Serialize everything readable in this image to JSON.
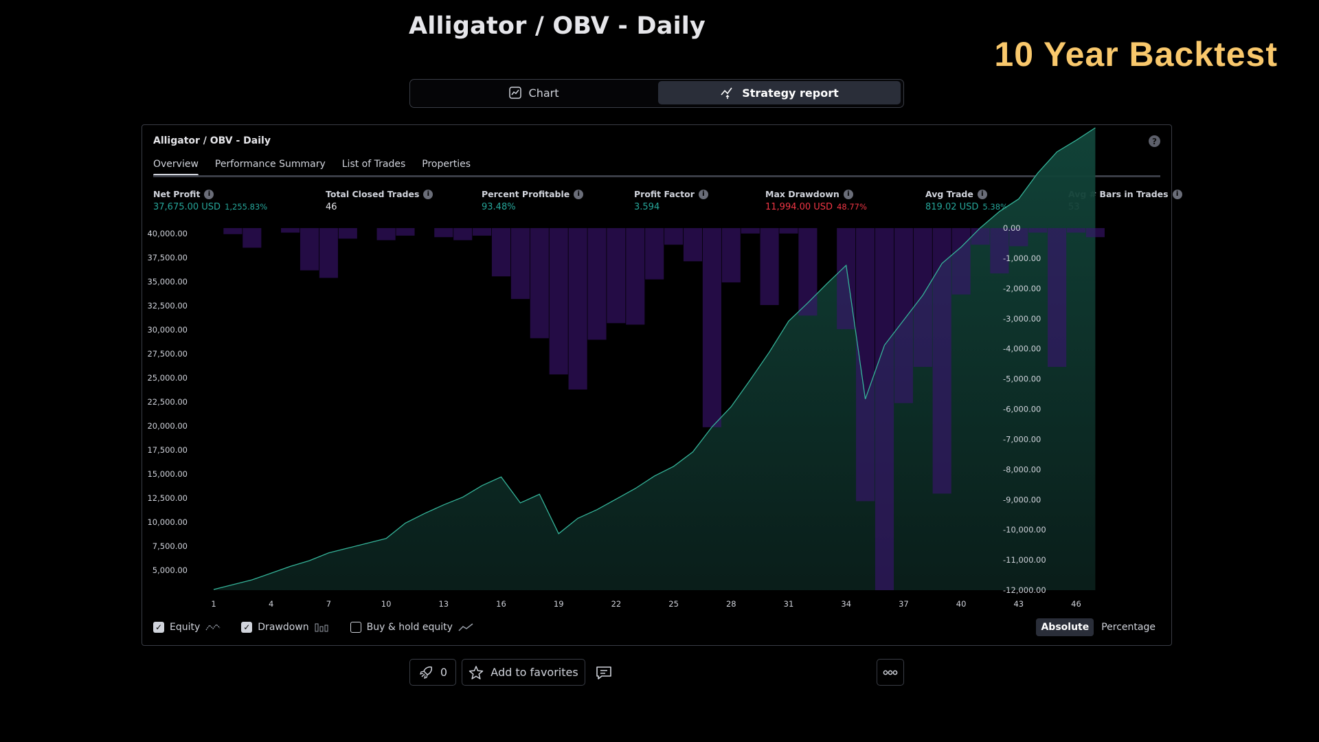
{
  "page_title": "Alligator / OBV - Daily",
  "banner": "10 Year Backtest",
  "view_switch": {
    "chart": "Chart",
    "strategy_report": "Strategy report",
    "active": "strategy_report"
  },
  "panel": {
    "title": "Alligator / OBV - Daily",
    "tabs": [
      "Overview",
      "Performance Summary",
      "List of Trades",
      "Properties"
    ],
    "active_tab": "Overview",
    "metrics": [
      {
        "label": "Net Profit",
        "value": "37,675.00 USD",
        "sub": "1,255.83%",
        "color": "#26a69a"
      },
      {
        "label": "Total Closed Trades",
        "value": "46",
        "sub": "",
        "color": "#e6e6ea"
      },
      {
        "label": "Percent Profitable",
        "value": "93.48%",
        "sub": "",
        "color": "#26a69a"
      },
      {
        "label": "Profit Factor",
        "value": "3.594",
        "sub": "",
        "color": "#26a69a"
      },
      {
        "label": "Max Drawdown",
        "value": "11,994.00 USD",
        "sub": "48.77%",
        "color": "#f23645"
      },
      {
        "label": "Avg Trade",
        "value": "819.02 USD",
        "sub": "5.38%",
        "color": "#26a69a"
      },
      {
        "label": "Avg # Bars in Trades",
        "value": "53",
        "sub": "",
        "color": "#e6e6ea"
      }
    ],
    "legend": [
      {
        "label": "Equity",
        "checked": true,
        "icon": "equity-icon"
      },
      {
        "label": "Drawdown",
        "checked": true,
        "icon": "drawdown-bars-icon"
      },
      {
        "label": "Buy & hold equity",
        "checked": false,
        "icon": "buy-hold-line-icon"
      }
    ],
    "mode": {
      "absolute": "Absolute",
      "percentage": "Percentage",
      "active": "absolute"
    }
  },
  "chart_data": {
    "type": "area",
    "x": [
      1,
      2,
      3,
      4,
      5,
      6,
      7,
      8,
      9,
      10,
      11,
      12,
      13,
      14,
      15,
      16,
      17,
      18,
      19,
      20,
      21,
      22,
      23,
      24,
      25,
      26,
      27,
      28,
      29,
      30,
      31,
      32,
      33,
      34,
      35,
      36,
      37,
      38,
      39,
      40,
      41,
      42,
      43,
      44,
      45,
      46,
      47
    ],
    "x_ticks": [
      1,
      4,
      7,
      10,
      13,
      16,
      19,
      22,
      25,
      28,
      31,
      34,
      37,
      40,
      43,
      46
    ],
    "series": [
      {
        "axis": "left",
        "type": "area",
        "values": [
          3000,
          3500,
          4000,
          4700,
          5400,
          6000,
          6800,
          7300,
          7800,
          8300,
          9900,
          10900,
          11800,
          12600,
          13800,
          14700,
          12000,
          12900,
          8800,
          10400,
          11300,
          12400,
          13500,
          14800,
          15800,
          17300,
          19900,
          22000,
          24800,
          27700,
          30900,
          32800,
          34800,
          36700,
          22800,
          28400,
          31000,
          33600,
          36900,
          38600,
          40600,
          42300,
          43600,
          46300,
          48500,
          49700,
          51000
        ]
      },
      {
        "axis": "right",
        "type": "bar",
        "values": [
          0,
          -200,
          -650,
          0,
          -150,
          -1400,
          -1650,
          -350,
          0,
          -400,
          -250,
          0,
          -300,
          -400,
          -250,
          -1600,
          -2350,
          -3650,
          -4850,
          -5350,
          -3700,
          -3150,
          -3200,
          -1700,
          -550,
          -1100,
          -6600,
          -1800,
          -180,
          -2550,
          -180,
          -2900,
          0,
          -3350,
          -9050,
          -12000,
          -5800,
          -4600,
          -8800,
          -2200,
          -550,
          -1500,
          -600,
          -150,
          -4600,
          -150,
          -300
        ]
      }
    ],
    "y_left": {
      "ticks": [
        "40,000.00",
        "37,500.00",
        "35,000.00",
        "32,500.00",
        "30,000.00",
        "27,500.00",
        "25,000.00",
        "22,500.00",
        "20,000.00",
        "17,500.00",
        "15,000.00",
        "12,500.00",
        "10,000.00",
        "7,500.00",
        "5,000.00"
      ]
    },
    "y_right": {
      "ticks": [
        "0.00",
        "-1,000.00",
        "-2,000.00",
        "-3,000.00",
        "-4,000.00",
        "-5,000.00",
        "-6,000.00",
        "-7,000.00",
        "-8,000.00",
        "-9,000.00",
        "-10,000.00",
        "-11,000.00",
        "-12,000.00"
      ],
      "ylim": [
        -12000,
        0
      ]
    },
    "colors": {
      "equity_line": "#35b59a",
      "equity_fill": "#0e2a25",
      "drawdown": "#2a1050"
    }
  },
  "bottom_bar": {
    "boost_count": "0",
    "favorites": "Add to favorites"
  }
}
